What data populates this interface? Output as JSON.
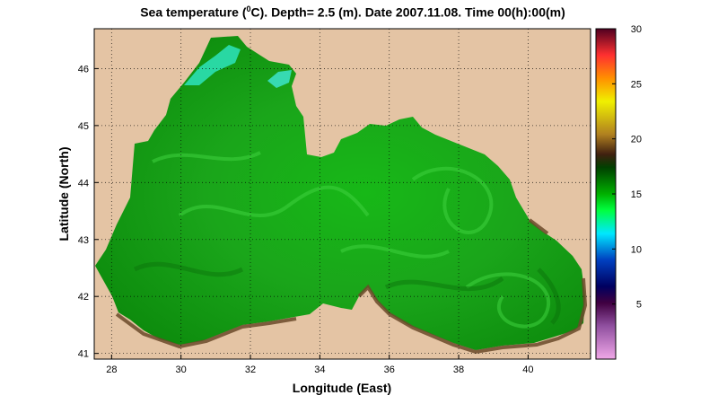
{
  "title": {
    "prefix": "Sea temperature (",
    "sup": "0",
    "suffix": "C). Depth=  2.5 (m). Date 2007.11.08. Time 00(h):00(m)"
  },
  "map": {
    "region": "Black Sea",
    "xlabel": "Longitude (East)",
    "ylabel": "Latitude (North)",
    "xlim": [
      27.5,
      41.8
    ],
    "ylim": [
      40.9,
      46.7
    ],
    "xticks": [
      "28",
      "30",
      "32",
      "34",
      "36",
      "38",
      "40"
    ],
    "yticks": [
      "41",
      "42",
      "43",
      "44",
      "45",
      "46"
    ],
    "grid": true,
    "land_color": "#e4c4a4",
    "water_color": "#1faa1f"
  },
  "colorbar": {
    "range": [
      0,
      30
    ],
    "ticks": [
      "5",
      "10",
      "15",
      "20",
      "25",
      "30"
    ],
    "colors": [
      "#f0a8e8",
      "#5a1858",
      "#000070",
      "#0050c0",
      "#00e8ff",
      "#00e000",
      "#006000",
      "#904020",
      "#f0f000",
      "#ff8000",
      "#ff3030",
      "#500020"
    ]
  }
}
